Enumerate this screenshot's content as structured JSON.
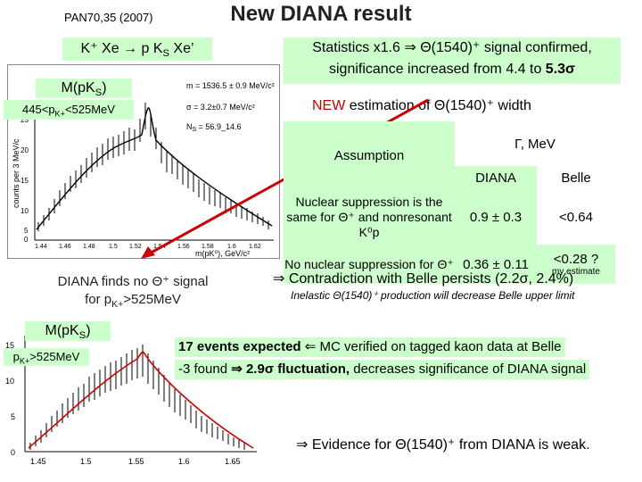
{
  "header": {
    "reference": "PAN70,35 (2007)",
    "title": "New DIANA result"
  },
  "reaction": "K⁺ Xe → p K",
  "reaction_sub": "S",
  "reaction_tail": " Xe’",
  "stats": {
    "line1": "Statistics x1.6 ⇒ Θ(1540)⁺ signal confirmed,",
    "line2_prefix": "significance increased from 4.4 to ",
    "line2_value": "5.3σ"
  },
  "upper_plot": {
    "mass_label": "M(pK",
    "mass_sub": "S",
    "range_prefix": "445<p",
    "range_sub": "K+",
    "range_suffix": "<525MeV",
    "fit_m": "m = 1536.5 ± 0.9 MeV/c²",
    "fit_sigma": "σ = 3.2±0.7 MeV/c²",
    "fit_ns": "N",
    "fit_ns_sub": "S",
    "fit_ns_val": " = 56.9_14.6",
    "y_axis": "counts per 3 MeV/c",
    "x_axis": "m(pK⁰), GeV/c²",
    "x_ticks": [
      "1.44",
      "1.46",
      "1.48",
      "1.5",
      "1.52",
      "1.54",
      "1.56",
      "1.58",
      "1.6",
      "1.62"
    ],
    "y_ticks": [
      "25",
      "20",
      "15",
      "10",
      "5",
      "0"
    ]
  },
  "width_section": {
    "prefix": "NEW",
    "text": " estimation of Θ(1540)⁺ width"
  },
  "table": {
    "assumption_header": "Assumption",
    "gamma_header": "Γ, MeV",
    "diana_header": "DIANA",
    "belle_header": "Belle",
    "rows": [
      {
        "assumption": "Nuclear suppression is the same for Θ⁺ and nonresonant K⁰p",
        "diana": "0.9 ± 0.3",
        "belle": "<0.64",
        "note": ""
      },
      {
        "assumption": "No nuclear suppression for Θ⁺",
        "diana": "0.36 ± 0.11",
        "belle": "<0.28 ?",
        "note": "my estimate"
      }
    ]
  },
  "finds": {
    "line1": "DIANA finds no Θ⁺ signal",
    "line2_prefix": "for p",
    "line2_sub": "K+",
    "line2_suffix": ">525MeV"
  },
  "contradiction": "⇒ Contradiction with Belle persists (2.2σ, 2.4%)",
  "inelastic": "Inelastic Θ(1540)⁺ production will decrease Belle upper limit",
  "lower_plot": {
    "mass_label": "M(pK",
    "mass_sub": "S",
    "range_prefix": "p",
    "range_sub": "K+",
    "range_suffix": ">525MeV",
    "y_ticks": [
      "15",
      "10",
      "5",
      "0"
    ],
    "x_ticks": [
      "1.45",
      "1.5",
      "1.55",
      "1.6",
      "1.65"
    ]
  },
  "events": {
    "expected": "17 events expected",
    "arrow": " ⇐ ",
    "mc": "MC verified on tagged kaon data at Belle",
    "found": "-3 found",
    "fluct_arrow": " ⇒",
    "fluct": "2.9σ fluctuation,",
    "decreases": " decreases significance of DIANA signal"
  },
  "evidence": "⇒ Evidence for Θ(1540)⁺ from DIANA is weak.",
  "colors": {
    "box_green": "#ccffcc",
    "accent_red": "#cc0000"
  }
}
